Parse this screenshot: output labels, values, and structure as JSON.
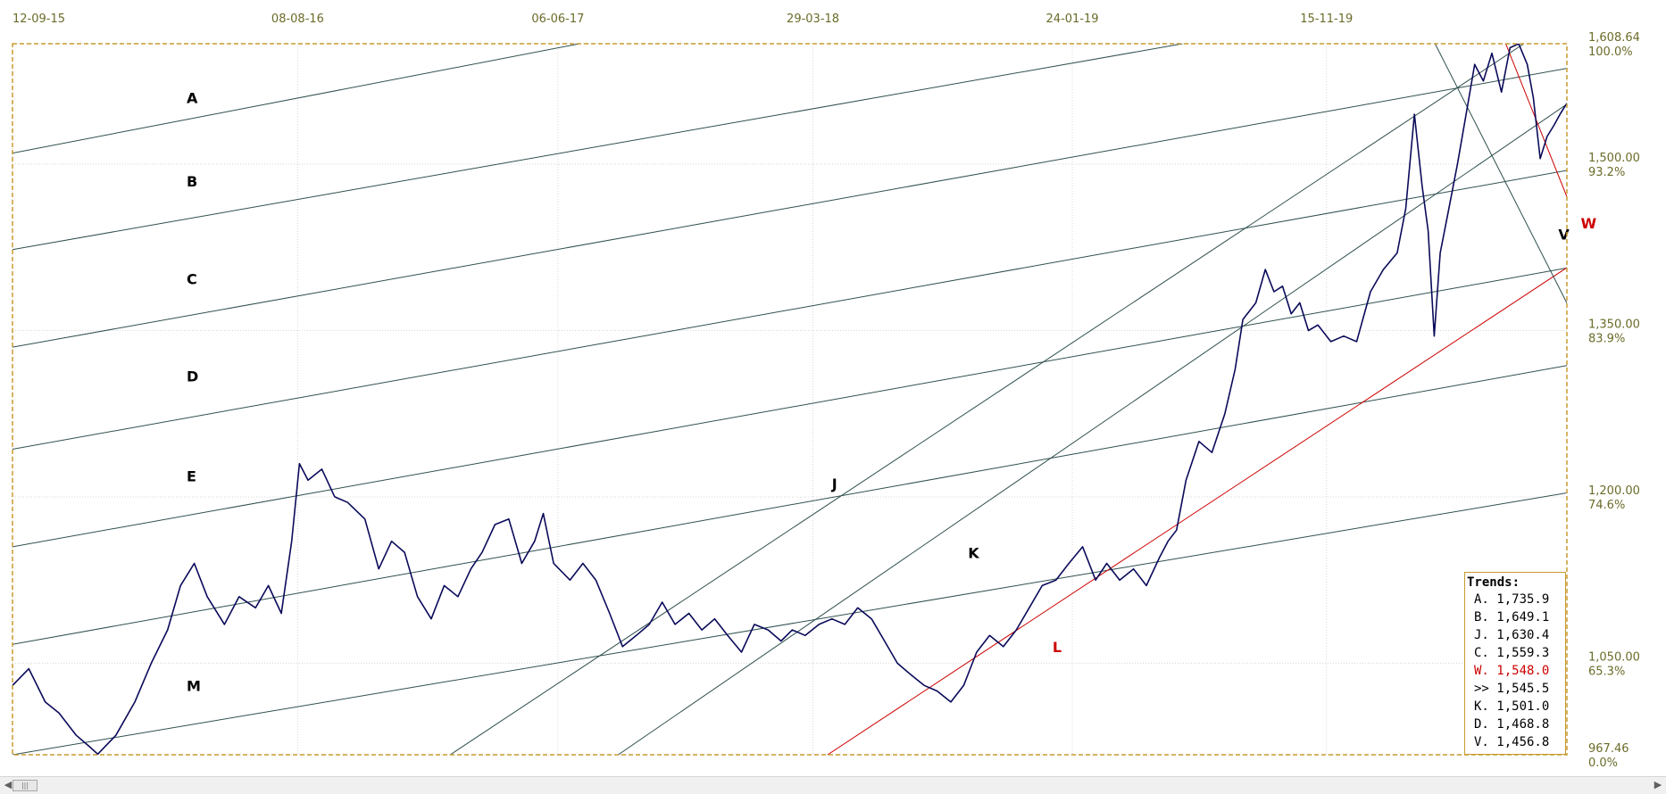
{
  "chart_data": {
    "type": "line",
    "title": "",
    "x_ticks": [
      "12-09-15",
      "08-08-16",
      "06-06-17",
      "29-03-18",
      "24-01-19",
      "15-11-19"
    ],
    "x_range": [
      "2015-09-12",
      "2020-08-20"
    ],
    "y_range": [
      967.46,
      1608.64
    ],
    "y_ticks": [
      {
        "price": "1,608.64",
        "pct": "100.0%"
      },
      {
        "price": "1,500.00",
        "pct": "93.2%"
      },
      {
        "price": "1,350.00",
        "pct": "83.9%"
      },
      {
        "price": "1,200.00",
        "pct": "74.6%"
      },
      {
        "price": "1,050.00",
        "pct": "65.3%"
      },
      {
        "price": "967.46",
        "pct": "0.0%"
      }
    ],
    "grid": true,
    "series": [
      {
        "color": "#0a0a5a",
        "points": [
          [
            "2015-09-12",
            1030
          ],
          [
            "2015-10-01",
            1045
          ],
          [
            "2015-10-20",
            1015
          ],
          [
            "2015-11-05",
            1005
          ],
          [
            "2015-11-25",
            985
          ],
          [
            "2015-12-10",
            975
          ],
          [
            "2015-12-20",
            968
          ],
          [
            "2016-01-10",
            985
          ],
          [
            "2016-02-01",
            1015
          ],
          [
            "2016-02-20",
            1050
          ],
          [
            "2016-03-10",
            1080
          ],
          [
            "2016-03-25",
            1120
          ],
          [
            "2016-04-10",
            1140
          ],
          [
            "2016-04-25",
            1110
          ],
          [
            "2016-05-15",
            1085
          ],
          [
            "2016-06-01",
            1110
          ],
          [
            "2016-06-20",
            1100
          ],
          [
            "2016-07-05",
            1120
          ],
          [
            "2016-07-20",
            1095
          ],
          [
            "2016-08-01",
            1160
          ],
          [
            "2016-08-10",
            1230
          ],
          [
            "2016-08-20",
            1215
          ],
          [
            "2016-09-05",
            1225
          ],
          [
            "2016-09-20",
            1200
          ],
          [
            "2016-10-05",
            1195
          ],
          [
            "2016-10-25",
            1180
          ],
          [
            "2016-11-10",
            1135
          ],
          [
            "2016-11-25",
            1160
          ],
          [
            "2016-12-10",
            1150
          ],
          [
            "2016-12-25",
            1110
          ],
          [
            "2017-01-10",
            1090
          ],
          [
            "2017-01-25",
            1120
          ],
          [
            "2017-02-10",
            1110
          ],
          [
            "2017-02-25",
            1135
          ],
          [
            "2017-03-10",
            1150
          ],
          [
            "2017-03-25",
            1175
          ],
          [
            "2017-04-10",
            1180
          ],
          [
            "2017-04-25",
            1140
          ],
          [
            "2017-05-10",
            1160
          ],
          [
            "2017-05-20",
            1185
          ],
          [
            "2017-06-01",
            1140
          ],
          [
            "2017-06-20",
            1125
          ],
          [
            "2017-07-05",
            1140
          ],
          [
            "2017-07-20",
            1125
          ],
          [
            "2017-08-05",
            1095
          ],
          [
            "2017-08-20",
            1065
          ],
          [
            "2017-09-05",
            1075
          ],
          [
            "2017-09-20",
            1085
          ],
          [
            "2017-10-05",
            1105
          ],
          [
            "2017-10-20",
            1085
          ],
          [
            "2017-11-05",
            1095
          ],
          [
            "2017-11-20",
            1080
          ],
          [
            "2017-12-05",
            1090
          ],
          [
            "2017-12-20",
            1075
          ],
          [
            "2018-01-05",
            1060
          ],
          [
            "2018-01-20",
            1085
          ],
          [
            "2018-02-05",
            1080
          ],
          [
            "2018-02-20",
            1070
          ],
          [
            "2018-03-05",
            1080
          ],
          [
            "2018-03-20",
            1075
          ],
          [
            "2018-04-05",
            1085
          ],
          [
            "2018-04-20",
            1090
          ],
          [
            "2018-05-05",
            1085
          ],
          [
            "2018-05-20",
            1100
          ],
          [
            "2018-06-05",
            1090
          ],
          [
            "2018-06-20",
            1070
          ],
          [
            "2018-07-05",
            1050
          ],
          [
            "2018-07-20",
            1040
          ],
          [
            "2018-08-05",
            1030
          ],
          [
            "2018-08-20",
            1025
          ],
          [
            "2018-09-05",
            1015
          ],
          [
            "2018-09-20",
            1030
          ],
          [
            "2018-10-05",
            1060
          ],
          [
            "2018-10-20",
            1075
          ],
          [
            "2018-11-05",
            1065
          ],
          [
            "2018-11-20",
            1080
          ],
          [
            "2018-12-05",
            1100
          ],
          [
            "2018-12-20",
            1120
          ],
          [
            "2019-01-05",
            1125
          ],
          [
            "2019-01-20",
            1140
          ],
          [
            "2019-02-05",
            1155
          ],
          [
            "2019-02-20",
            1125
          ],
          [
            "2019-03-05",
            1140
          ],
          [
            "2019-03-20",
            1125
          ],
          [
            "2019-04-05",
            1135
          ],
          [
            "2019-04-20",
            1120
          ],
          [
            "2019-05-05",
            1145
          ],
          [
            "2019-05-15",
            1160
          ],
          [
            "2019-05-25",
            1170
          ],
          [
            "2019-06-05",
            1215
          ],
          [
            "2019-06-20",
            1250
          ],
          [
            "2019-07-05",
            1240
          ],
          [
            "2019-07-20",
            1275
          ],
          [
            "2019-08-01",
            1315
          ],
          [
            "2019-08-10",
            1360
          ],
          [
            "2019-08-25",
            1375
          ],
          [
            "2019-09-05",
            1405
          ],
          [
            "2019-09-15",
            1385
          ],
          [
            "2019-09-25",
            1390
          ],
          [
            "2019-10-05",
            1365
          ],
          [
            "2019-10-15",
            1375
          ],
          [
            "2019-10-25",
            1350
          ],
          [
            "2019-11-05",
            1355
          ],
          [
            "2019-11-20",
            1340
          ],
          [
            "2019-12-05",
            1345
          ],
          [
            "2019-12-20",
            1340
          ],
          [
            "2020-01-05",
            1385
          ],
          [
            "2020-01-20",
            1405
          ],
          [
            "2020-02-05",
            1420
          ],
          [
            "2020-02-15",
            1460
          ],
          [
            "2020-02-25",
            1545
          ],
          [
            "2020-03-05",
            1480
          ],
          [
            "2020-03-12",
            1440
          ],
          [
            "2020-03-19",
            1345
          ],
          [
            "2020-03-26",
            1420
          ],
          [
            "2020-04-05",
            1460
          ],
          [
            "2020-04-15",
            1500
          ],
          [
            "2020-04-25",
            1545
          ],
          [
            "2020-05-05",
            1590
          ],
          [
            "2020-05-15",
            1575
          ],
          [
            "2020-05-25",
            1600
          ],
          [
            "2020-06-05",
            1565
          ],
          [
            "2020-06-15",
            1605
          ],
          [
            "2020-06-25",
            1608.64
          ],
          [
            "2020-07-05",
            1590
          ],
          [
            "2020-07-12",
            1560
          ],
          [
            "2020-07-20",
            1505
          ],
          [
            "2020-07-28",
            1525
          ],
          [
            "2020-08-05",
            1535
          ],
          [
            "2020-08-12",
            1545
          ],
          [
            "2020-08-20",
            1555
          ]
        ]
      }
    ],
    "trendlines": [
      {
        "label": "A",
        "color": "#2f4f4f",
        "points": [
          [
            "2015-09-12",
            1510
          ],
          [
            "2017-07-01",
            1608.64
          ]
        ]
      },
      {
        "label": "B",
        "color": "#2f4f4f",
        "points": [
          [
            "2015-09-12",
            1423
          ],
          [
            "2019-06-01",
            1608.64
          ]
        ]
      },
      {
        "label": "C",
        "color": "#2f4f4f",
        "points": [
          [
            "2015-09-12",
            1335
          ],
          [
            "2020-09-15",
            1590
          ]
        ]
      },
      {
        "label": "",
        "color": "#2f4f4f",
        "points": [
          [
            "2015-09-12",
            1243
          ],
          [
            "2020-09-15",
            1498
          ]
        ]
      },
      {
        "label": "D",
        "color": "#2f4f4f",
        "points": [
          [
            "2015-09-12",
            1155
          ],
          [
            "2020-09-15",
            1410
          ]
        ]
      },
      {
        "label": "E",
        "color": "#2f4f4f",
        "points": [
          [
            "2015-09-12",
            1067
          ],
          [
            "2020-09-15",
            1322
          ]
        ]
      },
      {
        "label": "M",
        "color": "#2f4f4f",
        "points": [
          [
            "2015-09-12",
            967.46
          ],
          [
            "2020-09-15",
            1207
          ]
        ]
      },
      {
        "label": "J",
        "color": "#2f4f4f",
        "points": [
          [
            "2017-02-01",
            967.46
          ],
          [
            "2020-07-01",
            1608.64
          ]
        ]
      },
      {
        "label": "K",
        "color": "#2f4f4f",
        "points": [
          [
            "2017-08-15",
            967.46
          ],
          [
            "2020-09-15",
            1568
          ]
        ]
      },
      {
        "label": "L",
        "color": "#cc0000",
        "points": [
          [
            "2018-04-15",
            967.46
          ],
          [
            "2020-09-15",
            1420
          ]
        ]
      },
      {
        "label": "W",
        "color": "#cc0000",
        "points": [
          [
            "2020-06-10",
            1608.64
          ],
          [
            "2020-09-15",
            1420
          ]
        ]
      },
      {
        "label": "V",
        "color": "#2f4f4f",
        "points": [
          [
            "2020-03-20",
            1608.64
          ],
          [
            "2020-09-15",
            1335
          ]
        ]
      }
    ],
    "labels": [
      {
        "text": "A",
        "color": "#000000",
        "date": "2016-04-01",
        "value": 1555
      },
      {
        "text": "B",
        "color": "#000000",
        "date": "2016-04-01",
        "value": 1480
      },
      {
        "text": "C",
        "color": "#000000",
        "date": "2016-04-01",
        "value": 1392
      },
      {
        "text": "D",
        "color": "#000000",
        "date": "2016-04-01",
        "value": 1304
      },
      {
        "text": "E",
        "color": "#000000",
        "date": "2016-04-01",
        "value": 1214
      },
      {
        "text": "M",
        "color": "#000000",
        "date": "2016-04-01",
        "value": 1025
      },
      {
        "text": "J",
        "color": "#000000",
        "date": "2018-04-20",
        "value": 1207
      },
      {
        "text": "K",
        "color": "#000000",
        "date": "2018-09-25",
        "value": 1145
      },
      {
        "text": "L",
        "color": "#cc0000",
        "date": "2019-01-01",
        "value": 1060
      },
      {
        "text": "V",
        "color": "#000000",
        "date": "2020-08-10",
        "value": 1432
      },
      {
        "text": "W",
        "color": "#cc0000",
        "date": "2020-09-05",
        "value": 1442
      }
    ]
  },
  "legend": {
    "title": "Trends:",
    "rows": [
      {
        "text": "A. 1,735.9",
        "color": "#000000"
      },
      {
        "text": "B. 1,649.1",
        "color": "#000000"
      },
      {
        "text": "J. 1,630.4",
        "color": "#000000"
      },
      {
        "text": "C. 1,559.3",
        "color": "#000000"
      },
      {
        "text": "W. 1,548.0",
        "color": "#cc0000"
      },
      {
        "text": ">> 1,545.5",
        "color": "#000000"
      },
      {
        "text": "K. 1,501.0",
        "color": "#000000"
      },
      {
        "text": "D. 1,468.8",
        "color": "#000000"
      },
      {
        "text": "V. 1,456.8",
        "color": "#000000"
      }
    ]
  },
  "colors": {
    "frame": "#c89b2e",
    "axis_text": "#6b6b2a",
    "grid": "#d8d8d8",
    "price_line": "#0a0a5a",
    "trend": "#2f4f4f",
    "trend_red": "#cc0000"
  },
  "scrollbar": {
    "left_icon": "arrow-left-icon",
    "right_icon": "arrow-right-icon",
    "thumb_icon": "grip-icon"
  }
}
